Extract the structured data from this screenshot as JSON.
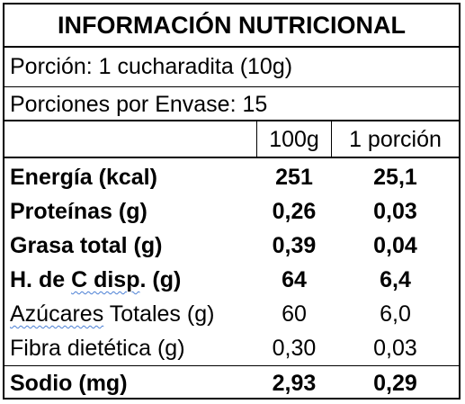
{
  "title": "INFORMACIÓN NUTRICIONAL",
  "portion": "Porción: 1 cucharadita (10g)",
  "portions_per_package": "Porciones por Envase: 15",
  "columns": {
    "per100": "100g",
    "per_portion": "1 porción"
  },
  "rows": [
    {
      "name_pre": "Energía (kcal)",
      "name_sq": "",
      "name_post": "",
      "per100": "251",
      "per_portion": "25,1",
      "bold": true
    },
    {
      "name_pre": "Proteínas (g)",
      "name_sq": "",
      "name_post": "",
      "per100": "0,26",
      "per_portion": "0,03",
      "bold": true
    },
    {
      "name_pre": "Grasa total (g)",
      "name_sq": "",
      "name_post": "",
      "per100": "0,39",
      "per_portion": "0,04",
      "bold": true
    },
    {
      "name_pre": "H. de ",
      "name_sq": "C disp",
      "name_post": ". (g)",
      "per100": "64",
      "per_portion": "6,4",
      "bold": true
    },
    {
      "name_pre": "",
      "name_sq": "Azúcares",
      "name_post": " Totales (g)",
      "per100": "60",
      "per_portion": "6,0",
      "bold": false
    },
    {
      "name_pre": "Fibra dietética (g)",
      "name_sq": "",
      "name_post": "",
      "per100": "0,30",
      "per_portion": "0,03",
      "bold": false
    },
    {
      "name_pre": "Sodio (mg)",
      "name_sq": "",
      "name_post": "",
      "per100": "2,93",
      "per_portion": "0,29",
      "bold": true
    }
  ]
}
